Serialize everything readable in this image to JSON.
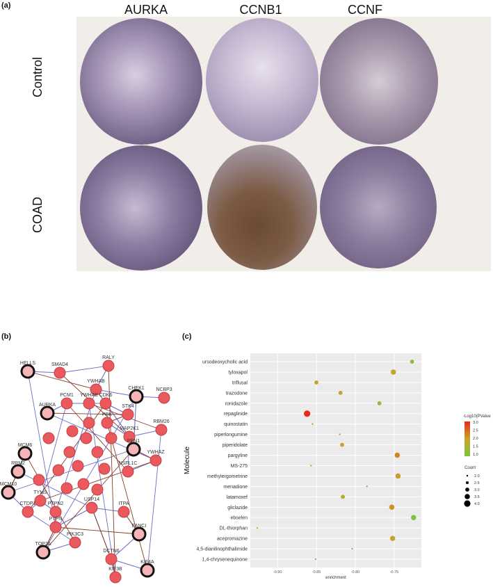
{
  "panel_a": {
    "label": "(a)",
    "columns": [
      "AURKA",
      "CCNB1",
      "CCNF"
    ],
    "rows": [
      "Control",
      "COAD"
    ]
  },
  "panel_b": {
    "label": "(b)",
    "nodes": [
      {
        "label": "HELLS",
        "hub": true
      },
      {
        "label": "SMAD4",
        "hub": false
      },
      {
        "label": "RALY",
        "hub": false
      },
      {
        "label": "CHEK1",
        "hub": true
      },
      {
        "label": "NCBP3",
        "hub": false
      },
      {
        "label": "YWHAB",
        "hub": false
      },
      {
        "label": "PCM1",
        "hub": false
      },
      {
        "label": "AURKA",
        "hub": true
      },
      {
        "label": "YWHAE",
        "hub": false
      },
      {
        "label": "CDK6",
        "hub": false
      },
      {
        "label": "STK4",
        "hub": false
      },
      {
        "label": "PBK",
        "hub": false
      },
      {
        "label": "MAP2K1",
        "hub": false
      },
      {
        "label": "RBM26",
        "hub": false
      },
      {
        "label": "MCM6",
        "hub": true
      },
      {
        "label": "RRM2",
        "hub": true
      },
      {
        "label": "YWHAZ",
        "hub": false
      },
      {
        "label": "PEN1",
        "hub": true
      },
      {
        "label": "MCM10",
        "hub": true
      },
      {
        "label": "NSFL1C",
        "hub": false
      },
      {
        "label": "CTDP1",
        "hub": false
      },
      {
        "label": "TYMS",
        "hub": false
      },
      {
        "label": "PTPN2",
        "hub": false
      },
      {
        "label": "PTPN",
        "hub": false
      },
      {
        "label": "USP14",
        "hub": false
      },
      {
        "label": "ITPA",
        "hub": false
      },
      {
        "label": "FANCI",
        "hub": true
      },
      {
        "label": "PIK3C3",
        "hub": false
      },
      {
        "label": "TOP2A",
        "hub": true
      },
      {
        "label": "DCTN6",
        "hub": false
      },
      {
        "label": "KIF4A",
        "hub": true
      },
      {
        "label": "KIF3B",
        "hub": false
      }
    ]
  },
  "panel_c": {
    "label": "(c)",
    "chart_data": {
      "type": "scatter",
      "ylabel": "Molecule",
      "xlabel": "enrichment",
      "xlim": [
        -0.935,
        -0.715
      ],
      "xticks": [
        "-0.90",
        "-0.85",
        "-0.80",
        "-0.75"
      ],
      "xtick_values": [
        -0.9,
        -0.85,
        -0.8,
        -0.75
      ],
      "points": [
        {
          "molecule": "ursodeoxycholic acid",
          "enrichment": -0.727,
          "pvalue": 1.2,
          "count": 3.0
        },
        {
          "molecule": "tyloxapol",
          "enrichment": -0.751,
          "pvalue": 2.0,
          "count": 3.5
        },
        {
          "molecule": "triflusal",
          "enrichment": -0.85,
          "pvalue": 2.0,
          "count": 3.0
        },
        {
          "molecule": "trazodone",
          "enrichment": -0.819,
          "pvalue": 2.0,
          "count": 3.0
        },
        {
          "molecule": "ronidazole",
          "enrichment": -0.769,
          "pvalue": 1.3,
          "count": 3.0
        },
        {
          "molecule": "repaglinide",
          "enrichment": -0.862,
          "pvalue": 3.1,
          "count": 4.0
        },
        {
          "molecule": "quinostatin",
          "enrichment": -0.855,
          "pvalue": 1.5,
          "count": 2.0
        },
        {
          "molecule": "piperlongumine",
          "enrichment": -0.82,
          "pvalue": 1.6,
          "count": 2.0
        },
        {
          "molecule": "piperidolate",
          "enrichment": -0.817,
          "pvalue": 2.0,
          "count": 3.0
        },
        {
          "molecule": "pargyline",
          "enrichment": -0.746,
          "pvalue": 2.3,
          "count": 3.5
        },
        {
          "molecule": "MS-275",
          "enrichment": -0.857,
          "pvalue": 1.6,
          "count": 2.0
        },
        {
          "molecule": "methylergometrine",
          "enrichment": -0.745,
          "pvalue": 2.1,
          "count": 3.5
        },
        {
          "molecule": "menadione",
          "enrichment": -0.785,
          "pvalue": 1.7,
          "count": 2.0
        },
        {
          "molecule": "latamoxef",
          "enrichment": -0.816,
          "pvalue": 1.8,
          "count": 3.0
        },
        {
          "molecule": "gliclazide",
          "enrichment": -0.753,
          "pvalue": 2.2,
          "count": 3.5
        },
        {
          "molecule": "ebselen",
          "enrichment": -0.725,
          "pvalue": 1.1,
          "count": 3.5
        },
        {
          "molecule": "DL-thiorphan",
          "enrichment": -0.926,
          "pvalue": 1.8,
          "count": 2.0
        },
        {
          "molecule": "acepromazine",
          "enrichment": -0.752,
          "pvalue": 2.0,
          "count": 3.5
        },
        {
          "molecule": "4,5-dianilinophthalimide",
          "enrichment": -0.804,
          "pvalue": 1.4,
          "count": 2.0
        },
        {
          "molecule": "1,4-chrysenequinone",
          "enrichment": -0.851,
          "pvalue": 1.2,
          "count": 2.0
        }
      ],
      "legend_color": {
        "title": "-Log10(PValue)",
        "ticks": [
          "3.0",
          "2.5",
          "2.0",
          "1.5",
          "1.0"
        ],
        "colors": [
          "#e8291c",
          "#c9a22a",
          "#7cc43c"
        ]
      },
      "legend_size": {
        "title": "Count",
        "ticks": [
          "2.0",
          "2.5",
          "3.0",
          "3.5",
          "4.0"
        ]
      }
    }
  }
}
